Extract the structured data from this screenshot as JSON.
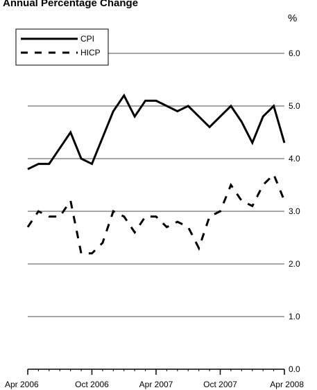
{
  "chart_data": {
    "type": "line",
    "title": "Annual Percentage Change",
    "unit_label": "%",
    "xlabel": "",
    "ylabel": "",
    "x": [
      "2006-04",
      "2006-05",
      "2006-06",
      "2006-07",
      "2006-08",
      "2006-09",
      "2006-10",
      "2006-11",
      "2006-12",
      "2007-01",
      "2007-02",
      "2007-03",
      "2007-04",
      "2007-05",
      "2007-06",
      "2007-07",
      "2007-08",
      "2007-09",
      "2007-10",
      "2007-11",
      "2007-12",
      "2008-01",
      "2008-02",
      "2008-03",
      "2008-04"
    ],
    "x_tick_labels": [
      "Apr 2006",
      "Oct 2006",
      "Apr 2007",
      "Oct 2007",
      "Apr 2008"
    ],
    "x_tick_values": [
      "2006-04",
      "2006-10",
      "2007-04",
      "2007-10",
      "2008-04"
    ],
    "xlim": [
      "2006-04",
      "2008-04"
    ],
    "ylim": [
      0,
      6.0
    ],
    "y_ticks": [
      "0.0",
      "1.0",
      "2.0",
      "3.0",
      "4.0",
      "5.0",
      "6.0"
    ],
    "y_axis_side": "right",
    "grid": true,
    "legend_position": "top-left",
    "series": [
      {
        "name": "CPI",
        "style": "solid",
        "values": [
          3.8,
          3.9,
          3.9,
          4.2,
          4.5,
          4.0,
          3.9,
          4.4,
          4.9,
          5.2,
          4.8,
          5.1,
          5.1,
          5.0,
          4.9,
          5.0,
          4.8,
          4.6,
          4.8,
          5.0,
          4.7,
          4.3,
          4.8,
          5.0,
          4.3
        ]
      },
      {
        "name": "HICP",
        "style": "dashed",
        "values": [
          2.7,
          3.0,
          2.9,
          2.9,
          3.2,
          2.2,
          2.2,
          2.4,
          3.0,
          2.9,
          2.6,
          2.9,
          2.9,
          2.7,
          2.8,
          2.7,
          2.3,
          2.9,
          3.0,
          3.5,
          3.2,
          3.1,
          3.5,
          3.7,
          3.2
        ]
      }
    ],
    "colors": {
      "line": "#000000",
      "grid": "#a6a6a6"
    }
  }
}
